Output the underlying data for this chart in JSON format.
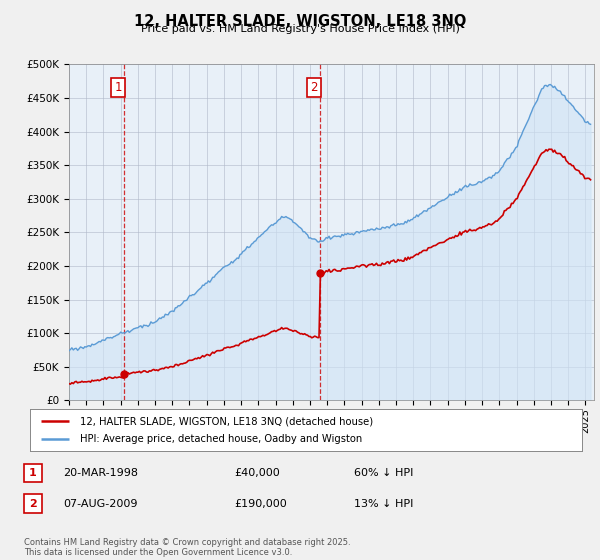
{
  "title": "12, HALTER SLADE, WIGSTON, LE18 3NQ",
  "subtitle": "Price paid vs. HM Land Registry's House Price Index (HPI)",
  "xlim_start": 1995.0,
  "xlim_end": 2025.5,
  "ylim": [
    0,
    500000
  ],
  "yticks": [
    0,
    50000,
    100000,
    150000,
    200000,
    250000,
    300000,
    350000,
    400000,
    450000,
    500000
  ],
  "ytick_labels": [
    "£0",
    "£50K",
    "£100K",
    "£150K",
    "£200K",
    "£250K",
    "£300K",
    "£350K",
    "£400K",
    "£450K",
    "£500K"
  ],
  "hpi_color": "#5b9bd5",
  "hpi_fill_color": "#d0e4f5",
  "price_color": "#cc0000",
  "vline_color": "#cc0000",
  "purchase1_x": 1998.22,
  "purchase1_y": 40000,
  "purchase2_x": 2009.59,
  "purchase2_y": 190000,
  "legend_line1": "12, HALTER SLADE, WIGSTON, LE18 3NQ (detached house)",
  "legend_line2": "HPI: Average price, detached house, Oadby and Wigston",
  "table_row1": [
    "1",
    "20-MAR-1998",
    "£40,000",
    "60% ↓ HPI"
  ],
  "table_row2": [
    "2",
    "07-AUG-2009",
    "£190,000",
    "13% ↓ HPI"
  ],
  "footer": "Contains HM Land Registry data © Crown copyright and database right 2025.\nThis data is licensed under the Open Government Licence v3.0.",
  "bg_color": "#f0f0f0",
  "plot_bg_color": "#e8f0f8"
}
